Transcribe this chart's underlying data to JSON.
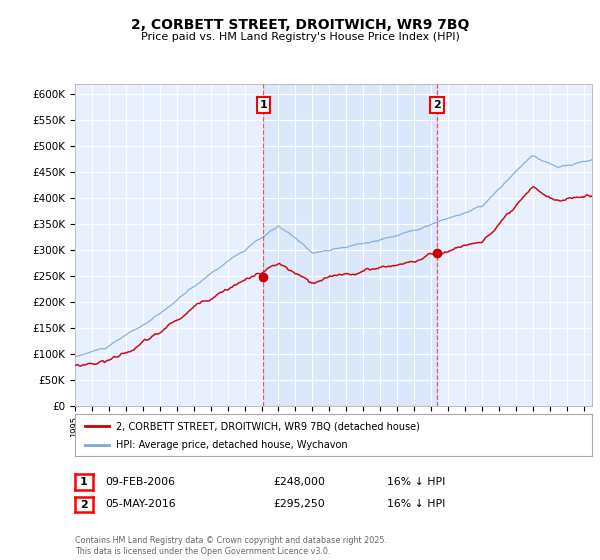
{
  "title": "2, CORBETT STREET, DROITWICH, WR9 7BQ",
  "subtitle": "Price paid vs. HM Land Registry's House Price Index (HPI)",
  "legend_label_red": "2, CORBETT STREET, DROITWICH, WR9 7BQ (detached house)",
  "legend_label_blue": "HPI: Average price, detached house, Wychavon",
  "sale1_date": "09-FEB-2006",
  "sale1_price": "£248,000",
  "sale1_hpi": "16% ↓ HPI",
  "sale2_date": "05-MAY-2016",
  "sale2_price": "£295,250",
  "sale2_hpi": "16% ↓ HPI",
  "copyright": "Contains HM Land Registry data © Crown copyright and database right 2025.\nThis data is licensed under the Open Government Licence v3.0.",
  "ylim": [
    0,
    620000
  ],
  "yticks": [
    0,
    50000,
    100000,
    150000,
    200000,
    250000,
    300000,
    350000,
    400000,
    450000,
    500000,
    550000,
    600000
  ],
  "plot_bg_color": "#e8f0ff",
  "shade_color": "#d0e4f7",
  "red_color": "#cc0000",
  "blue_color": "#7aaadd",
  "vline1_x": 2006.1,
  "vline2_x": 2016.35,
  "xmin": 1995,
  "xmax": 2025.5,
  "fig_width": 6.0,
  "fig_height": 5.6,
  "dpi": 100
}
